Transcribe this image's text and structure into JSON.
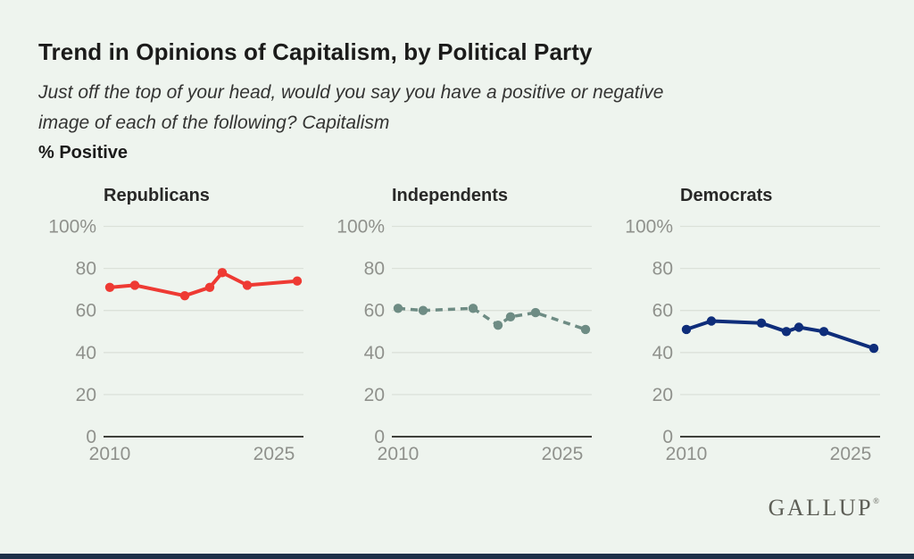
{
  "page": {
    "title": "Trend in Opinions of Capitalism, by Political Party",
    "subtitle_lines": [
      "Just off the top of your head, would you say you have a positive or negative",
      "image of each of the following? Capitalism"
    ],
    "unit_label": "% Positive",
    "brand": "GALLUP",
    "brand_mark": "®"
  },
  "colors": {
    "background": "#eef4ee",
    "title_text": "#1b1b1a",
    "subtitle_text": "#343433",
    "panel_title_text": "#282827",
    "axis_label": "#8f918c",
    "gridline": "#dbe1d9",
    "axis_line": "#3f403b",
    "republicans": "#ee3a33",
    "independents": "#6e8c84",
    "democrats": "#0e2d7a",
    "logo": "#5d5e56",
    "footer_bar": "#1e3048"
  },
  "chart_data": {
    "type": "line",
    "title": "Trend in Opinions of Capitalism, by Political Party",
    "ylabel": "% Positive",
    "x": [
      2010,
      2012,
      2016,
      2018,
      2019,
      2021,
      2025
    ],
    "x_axis_tick_labels": [
      "2010",
      "2025"
    ],
    "ylim": [
      0,
      100
    ],
    "ytick_values": [
      0,
      20,
      40,
      60,
      80,
      100
    ],
    "ytick_labels": [
      "0",
      "20",
      "40",
      "60",
      "80",
      "100%"
    ],
    "grid": true,
    "legend": "none (panel titles act as series labels)",
    "panels": [
      {
        "title": "Republicans",
        "color_key": "republicans",
        "dashed": false,
        "values": [
          71,
          72,
          67,
          71,
          78,
          72,
          74
        ]
      },
      {
        "title": "Independents",
        "color_key": "independents",
        "dashed": true,
        "values": [
          61,
          60,
          61,
          53,
          57,
          59,
          51
        ]
      },
      {
        "title": "Democrats",
        "color_key": "democrats",
        "dashed": false,
        "values": [
          51,
          55,
          54,
          50,
          52,
          50,
          42
        ]
      }
    ]
  }
}
